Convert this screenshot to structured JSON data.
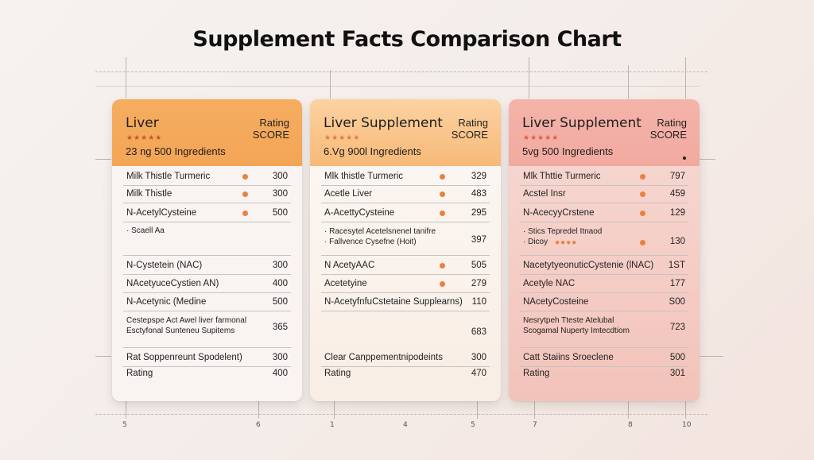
{
  "title": "Supplement Facts Comparison Chart",
  "axis_ticks": [
    "5",
    "6",
    "1",
    "4",
    "5",
    "7",
    "8",
    "10"
  ],
  "colors": {
    "card_1_header": "#f5ad60",
    "card_2_header": "#f8b978",
    "card_3_header": "#f2aaa0",
    "dot": "#e8823e"
  },
  "cards": [
    {
      "name": "Liver",
      "rating_line1": "Rating",
      "rating_line2": "SCORE",
      "stars": "★★★★★",
      "subtitle": "23 ng 500 Ingredients",
      "rows": [
        {
          "label": "Milk Thistle Turmeric",
          "value": "300",
          "dot": true
        },
        {
          "label": "Milk Thistle",
          "value": "300",
          "dot": true
        },
        {
          "label": "N-AcetylCysteine",
          "value": "500",
          "dot": true
        },
        {
          "label": "· Scaell Aa",
          "value": ""
        },
        {
          "label": "N-Cystetein (NAC)",
          "value": "300"
        },
        {
          "label": "NAcetyuceCystien AN)",
          "value": "400"
        },
        {
          "label": "N-Acetynic (Medine",
          "value": "500"
        },
        {
          "label": "Cestepspe Act Awel liver farmonal",
          "label2": "Esctyfonal Sunteneu Supitems",
          "value": "365"
        },
        {
          "label": "Rat Soppenreunt Spodelent)",
          "value": "300"
        },
        {
          "label": "Rating",
          "value": "400"
        }
      ]
    },
    {
      "name": "Liver Supplement",
      "rating_line1": "Rating",
      "rating_line2": "SCORE",
      "stars": "★★★★★",
      "subtitle": "6.Vg 900l  Ingredients",
      "rows": [
        {
          "label": "Mlk thistle Turmeric",
          "value": "329",
          "dot": true
        },
        {
          "label": "Acetle Liver",
          "value": "483",
          "dot": true
        },
        {
          "label": "A-AcettyCysteine",
          "value": "295",
          "dot": true
        },
        {
          "label": "· Racesytel Acetelsnenel tanifre",
          "label2": "· Fallvence Cysefne (Hoit)",
          "value": "397"
        },
        {
          "label": "N AcetyAAC",
          "value": "505",
          "dot": true
        },
        {
          "label": "Acetetyine",
          "value": "279",
          "dot": true
        },
        {
          "label": "N-AcetyfnfuCstetaine Supplearns)",
          "value": "110"
        },
        {
          "label": "",
          "value": "683"
        },
        {
          "label": "Clear Canppementnipodeints",
          "value": "300"
        },
        {
          "label": "Rating",
          "value": "470"
        }
      ]
    },
    {
      "name": "Liver Supplement",
      "rating_line1": "Rating",
      "rating_line2": "SCORE",
      "stars": "★★★★★",
      "subtitle": "5vg 500 Ingredients",
      "rows": [
        {
          "label": "Mlk Thttie Turmeric",
          "value": "797",
          "dot": true
        },
        {
          "label": "Acstel Insr",
          "value": "459",
          "dot": true
        },
        {
          "label": "N-AcecyyCrstene",
          "value": "129",
          "dot": true
        },
        {
          "label": "· Stics Tepredel Itnaod",
          "label2": "· Dicoy",
          "value": "130",
          "dots": "●●●●",
          "dot": true
        },
        {
          "label": "NacetytyeonuticCystenie (lNAC)",
          "value": "1ST"
        },
        {
          "label": "Acetyle NAC",
          "value": "177"
        },
        {
          "label": "NAcetyCosteine",
          "value": "S00"
        },
        {
          "label": "Nesrytpeh Tteste Atelubal",
          "label2": "Scogamal Nuperty Imtecdtiom",
          "value": "723"
        },
        {
          "label": "Catt Staiins Sroeclene",
          "value": "500"
        },
        {
          "label": "Rating",
          "value": "301"
        }
      ]
    }
  ]
}
